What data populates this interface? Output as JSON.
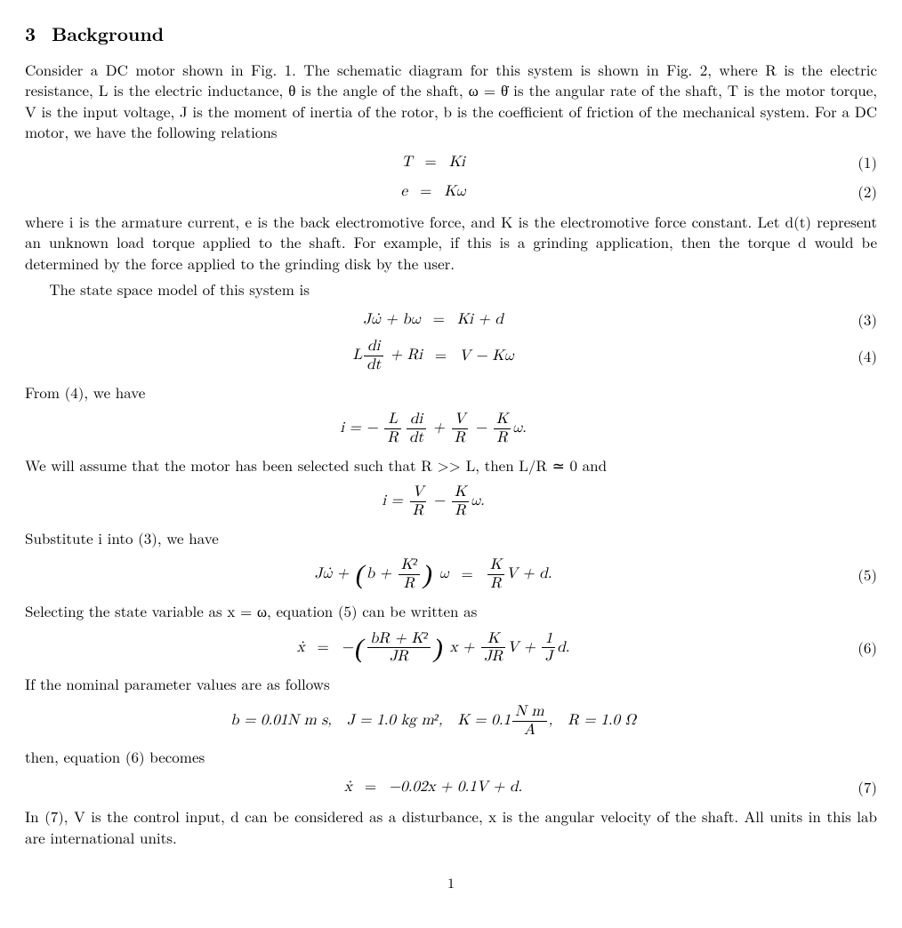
{
  "section": {
    "number": "3",
    "title": "Background"
  },
  "para1": "Consider a DC motor shown in Fig. 1. The schematic diagram for this system is shown in Fig. 2, where R is the electric resistance, L is the electric inductance, θ is the angle of the shaft, ω = θ̇ is the angular rate of the shaft, T is the motor torque, V is the input voltage, J is the moment of inertia of the rotor, b is the coefficient of friction of the mechanical system. For a DC motor, we have the following relations",
  "eq1": {
    "lhs": "T",
    "op": "=",
    "rhs": "Ki",
    "num": "(1)"
  },
  "eq2": {
    "lhs": "e",
    "op": "=",
    "rhs": "Kω",
    "num": "(2)"
  },
  "para2": "where i is the armature current, e is the back electromotive force, and K is the electromotive force constant. Let d(t) represent an unknown load torque applied to the shaft. For example, if this is a grinding application, then the torque d would be determined by the force applied to the grinding disk by the user.",
  "para2_line2": "The state space model of this system is",
  "eq3": {
    "lhs": "Jω̇ + bω",
    "op": "=",
    "rhs": "Ki + d",
    "num": "(3)"
  },
  "eq4": {
    "lhs_pre": "L",
    "lhs_num": "di",
    "lhs_den": "dt",
    "lhs_post": " + Ri",
    "op": "=",
    "rhs": "V − Kω",
    "num": "(4)"
  },
  "para3": "From (4), we have",
  "eq_unnum_a": {
    "lhs": "i = −",
    "t1_num": "L",
    "t1_den": "R",
    "t2_num": "di",
    "t2_den": "dt",
    "mid1": " + ",
    "t3_num": "V",
    "t3_den": "R",
    "mid2": " − ",
    "t4_num": "K",
    "t4_den": "R",
    "tail": "ω."
  },
  "para4": "We will assume that the motor has been selected such that R >> L, then L/R ≃ 0 and",
  "eq_unnum_b": {
    "lhs": "i = ",
    "t1_num": "V",
    "t1_den": "R",
    "mid": " − ",
    "t2_num": "K",
    "t2_den": "R",
    "tail": "ω."
  },
  "para5": "Substitute i into (3), we have",
  "eq5": {
    "lhs_pre": "Jω̇ + ",
    "paren_inner_pre": "b + ",
    "paren_num": "K²",
    "paren_den": "R",
    "lhs_post": " ω",
    "op": "=",
    "rhs_num": "K",
    "rhs_den": "R",
    "rhs_post": "V + d.",
    "num": "(5)"
  },
  "para6": "Selecting the state variable as x = ω, equation (5) can be written as",
  "eq6": {
    "lhs": "ẋ",
    "op": "=",
    "neg": "−",
    "p_num": "bR + K²",
    "p_den": "JR",
    "after_paren": " x + ",
    "t2_num": "K",
    "t2_den": "JR",
    "mid": "V + ",
    "t3_num": "1",
    "t3_den": "J",
    "tail": "d.",
    "num": "(6)"
  },
  "para7": "If the nominal parameter values are as follows",
  "params": {
    "b": "b = 0.01N m s,",
    "J": "J = 1.0 kg m²,",
    "K_pre": "K = 0.1",
    "K_num": "N m",
    "K_den": "A",
    "K_post": ",",
    "R": "R = 1.0 Ω"
  },
  "para8": "then, equation (6) becomes",
  "eq7": {
    "lhs": "ẋ",
    "op": "=",
    "rhs": "−0.02x + 0.1V + d.",
    "num": "(7)"
  },
  "para9": "In (7), V is the control input, d can be considered as a disturbance, x is the angular velocity of the shaft. All units in this lab are international units.",
  "page_number": "1",
  "typography": {
    "body_font": "Latin Modern Roman / Computer Modern serif",
    "body_size_pt": 11,
    "heading_weight": "bold",
    "text_color": "#000000",
    "background_color": "#ffffff"
  }
}
